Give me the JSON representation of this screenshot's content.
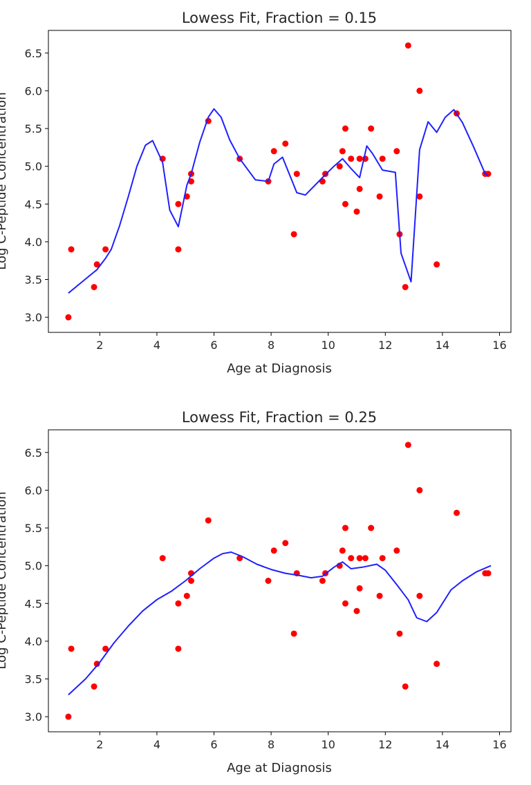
{
  "chart_data": [
    {
      "type": "scatter",
      "title": "Lowess Fit, Fraction = 0.15",
      "xlabel": "Age at Diagnosis",
      "ylabel": "Log C-Peptide Concentration",
      "xlim": [
        0.2,
        16.4
      ],
      "ylim": [
        2.8,
        6.8
      ],
      "xticks": [
        2,
        4,
        6,
        8,
        10,
        12,
        14,
        16
      ],
      "yticks": [
        3.0,
        3.5,
        4.0,
        4.5,
        5.0,
        5.5,
        6.0,
        6.5
      ],
      "grid": false,
      "series": [
        {
          "kind": "scatter",
          "color": "#ff0000",
          "points": [
            [
              0.9,
              3.0
            ],
            [
              1.0,
              3.9
            ],
            [
              1.8,
              3.4
            ],
            [
              1.9,
              3.7
            ],
            [
              2.2,
              3.9
            ],
            [
              4.2,
              5.1
            ],
            [
              4.75,
              4.5
            ],
            [
              4.75,
              3.9
            ],
            [
              5.05,
              4.6
            ],
            [
              5.2,
              4.8
            ],
            [
              5.2,
              4.9
            ],
            [
              5.8,
              5.6
            ],
            [
              6.9,
              5.1
            ],
            [
              7.9,
              4.8
            ],
            [
              8.1,
              5.2
            ],
            [
              8.5,
              5.3
            ],
            [
              8.8,
              4.1
            ],
            [
              8.9,
              4.9
            ],
            [
              9.8,
              4.8
            ],
            [
              9.9,
              4.9
            ],
            [
              10.4,
              5.0
            ],
            [
              10.5,
              5.2
            ],
            [
              10.6,
              5.5
            ],
            [
              10.6,
              4.5
            ],
            [
              10.8,
              5.1
            ],
            [
              11.0,
              4.4
            ],
            [
              11.1,
              5.1
            ],
            [
              11.1,
              4.7
            ],
            [
              11.3,
              5.1
            ],
            [
              11.5,
              5.5
            ],
            [
              11.8,
              4.6
            ],
            [
              11.9,
              5.1
            ],
            [
              12.4,
              5.2
            ],
            [
              12.5,
              4.1
            ],
            [
              12.7,
              3.4
            ],
            [
              12.8,
              6.6
            ],
            [
              13.2,
              6.0
            ],
            [
              13.2,
              4.6
            ],
            [
              13.8,
              3.7
            ],
            [
              14.5,
              5.7
            ],
            [
              15.5,
              4.9
            ],
            [
              15.6,
              4.9
            ]
          ]
        },
        {
          "kind": "line",
          "color": "#1f1fff",
          "points": [
            [
              0.9,
              3.32
            ],
            [
              1.8,
              3.6
            ],
            [
              1.9,
              3.63
            ],
            [
              2.2,
              3.78
            ],
            [
              2.4,
              3.9
            ],
            [
              2.7,
              4.22
            ],
            [
              3.0,
              4.6
            ],
            [
              3.3,
              5.0
            ],
            [
              3.6,
              5.28
            ],
            [
              3.85,
              5.34
            ],
            [
              4.2,
              5.05
            ],
            [
              4.45,
              4.42
            ],
            [
              4.75,
              4.2
            ],
            [
              5.05,
              4.75
            ],
            [
              5.2,
              4.9
            ],
            [
              5.5,
              5.32
            ],
            [
              5.8,
              5.65
            ],
            [
              6.0,
              5.76
            ],
            [
              6.25,
              5.65
            ],
            [
              6.55,
              5.35
            ],
            [
              6.9,
              5.1
            ],
            [
              7.45,
              4.82
            ],
            [
              7.9,
              4.8
            ],
            [
              8.1,
              5.03
            ],
            [
              8.4,
              5.12
            ],
            [
              8.9,
              4.65
            ],
            [
              9.2,
              4.62
            ],
            [
              9.8,
              4.85
            ],
            [
              10.2,
              5.0
            ],
            [
              10.5,
              5.1
            ],
            [
              10.8,
              4.97
            ],
            [
              11.1,
              4.85
            ],
            [
              11.35,
              5.27
            ],
            [
              11.55,
              5.17
            ],
            [
              11.9,
              4.95
            ],
            [
              12.35,
              4.92
            ],
            [
              12.55,
              3.85
            ],
            [
              12.9,
              3.47
            ],
            [
              13.2,
              5.22
            ],
            [
              13.5,
              5.59
            ],
            [
              13.8,
              5.45
            ],
            [
              14.1,
              5.65
            ],
            [
              14.4,
              5.75
            ],
            [
              14.7,
              5.58
            ],
            [
              15.1,
              5.25
            ],
            [
              15.5,
              4.9
            ],
            [
              15.6,
              4.88
            ]
          ]
        }
      ]
    },
    {
      "type": "scatter",
      "title": "Lowess Fit, Fraction = 0.25",
      "xlabel": "Age at Diagnosis",
      "ylabel": "Log C-Peptide Concentration",
      "xlim": [
        0.2,
        16.4
      ],
      "ylim": [
        2.8,
        6.8
      ],
      "xticks": [
        2,
        4,
        6,
        8,
        10,
        12,
        14,
        16
      ],
      "yticks": [
        3.0,
        3.5,
        4.0,
        4.5,
        5.0,
        5.5,
        6.0,
        6.5
      ],
      "grid": false,
      "series": [
        {
          "kind": "scatter",
          "color": "#ff0000",
          "points": [
            [
              0.9,
              3.0
            ],
            [
              1.0,
              3.9
            ],
            [
              1.8,
              3.4
            ],
            [
              1.9,
              3.7
            ],
            [
              2.2,
              3.9
            ],
            [
              4.2,
              5.1
            ],
            [
              4.75,
              4.5
            ],
            [
              4.75,
              3.9
            ],
            [
              5.05,
              4.6
            ],
            [
              5.2,
              4.8
            ],
            [
              5.2,
              4.9
            ],
            [
              5.8,
              5.6
            ],
            [
              6.9,
              5.1
            ],
            [
              7.9,
              4.8
            ],
            [
              8.1,
              5.2
            ],
            [
              8.5,
              5.3
            ],
            [
              8.8,
              4.1
            ],
            [
              8.9,
              4.9
            ],
            [
              9.8,
              4.8
            ],
            [
              9.9,
              4.9
            ],
            [
              10.4,
              5.0
            ],
            [
              10.5,
              5.2
            ],
            [
              10.6,
              5.5
            ],
            [
              10.6,
              4.5
            ],
            [
              10.8,
              5.1
            ],
            [
              11.0,
              4.4
            ],
            [
              11.1,
              5.1
            ],
            [
              11.1,
              4.7
            ],
            [
              11.3,
              5.1
            ],
            [
              11.5,
              5.5
            ],
            [
              11.8,
              4.6
            ],
            [
              11.9,
              5.1
            ],
            [
              12.4,
              5.2
            ],
            [
              12.5,
              4.1
            ],
            [
              12.7,
              3.4
            ],
            [
              12.8,
              6.6
            ],
            [
              13.2,
              6.0
            ],
            [
              13.2,
              4.6
            ],
            [
              13.8,
              3.7
            ],
            [
              14.5,
              5.7
            ],
            [
              15.5,
              4.9
            ],
            [
              15.6,
              4.9
            ]
          ]
        },
        {
          "kind": "line",
          "color": "#1f1fff",
          "points": [
            [
              0.9,
              3.29
            ],
            [
              1.5,
              3.5
            ],
            [
              2.0,
              3.72
            ],
            [
              2.5,
              3.98
            ],
            [
              3.0,
              4.2
            ],
            [
              3.5,
              4.4
            ],
            [
              4.0,
              4.55
            ],
            [
              4.5,
              4.66
            ],
            [
              5.0,
              4.8
            ],
            [
              5.5,
              4.96
            ],
            [
              6.0,
              5.1
            ],
            [
              6.3,
              5.16
            ],
            [
              6.6,
              5.18
            ],
            [
              7.0,
              5.12
            ],
            [
              7.5,
              5.02
            ],
            [
              8.0,
              4.95
            ],
            [
              8.5,
              4.9
            ],
            [
              9.0,
              4.87
            ],
            [
              9.4,
              4.84
            ],
            [
              9.8,
              4.86
            ],
            [
              10.2,
              4.98
            ],
            [
              10.5,
              5.05
            ],
            [
              10.8,
              4.96
            ],
            [
              11.2,
              4.98
            ],
            [
              11.7,
              5.02
            ],
            [
              12.0,
              4.94
            ],
            [
              12.4,
              4.75
            ],
            [
              12.8,
              4.55
            ],
            [
              13.1,
              4.31
            ],
            [
              13.45,
              4.26
            ],
            [
              13.8,
              4.38
            ],
            [
              14.3,
              4.68
            ],
            [
              14.7,
              4.8
            ],
            [
              15.2,
              4.92
            ],
            [
              15.7,
              5.0
            ]
          ]
        }
      ]
    }
  ]
}
